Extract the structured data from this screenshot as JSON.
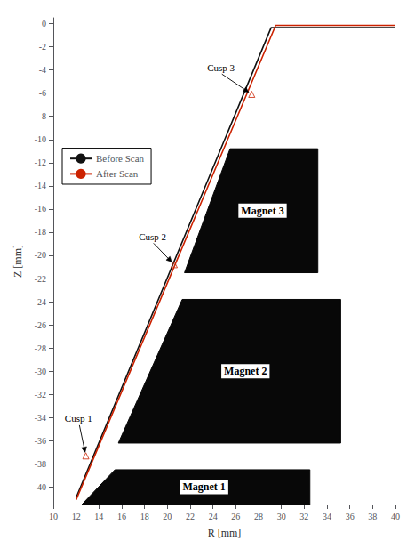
{
  "chart_data": {
    "type": "line",
    "xlabel": "R [mm]",
    "ylabel": "Z [mm]",
    "xlim": [
      10,
      40
    ],
    "ylim": [
      -41.5,
      0.5
    ],
    "xticks": [
      10,
      12,
      14,
      16,
      18,
      20,
      22,
      24,
      26,
      28,
      30,
      32,
      34,
      36,
      38,
      40
    ],
    "yticks": [
      0,
      -2,
      -4,
      -6,
      -8,
      -10,
      -12,
      -14,
      -16,
      -18,
      -20,
      -22,
      -24,
      -26,
      -28,
      -30,
      -32,
      -34,
      -36,
      -38,
      -40
    ],
    "grid": false,
    "legend": "left",
    "series": [
      {
        "name": "Before Scan",
        "color": "#111111",
        "x": [
          12.0,
          29.1,
          40.0
        ],
        "values": [
          -40.9,
          -0.35,
          -0.35
        ]
      },
      {
        "name": "After Scan",
        "color": "#cc2200",
        "x": [
          12.0,
          29.5,
          40.0
        ],
        "values": [
          -41.1,
          -0.15,
          -0.15
        ]
      }
    ],
    "annotations": [
      {
        "text": "Cusp 1",
        "x": 12.85,
        "y": -37.3,
        "text_at": [
          11.0,
          -34.5
        ],
        "marker": "triangle",
        "color": "#cc2200"
      },
      {
        "text": "Cusp 2",
        "x": 20.6,
        "y": -20.8,
        "text_at": [
          17.5,
          -18.8
        ],
        "marker": "triangle",
        "color": "#cc2200"
      },
      {
        "text": "Cusp 3",
        "x": 27.4,
        "y": -6.1,
        "text_at": [
          23.5,
          -4.2
        ],
        "marker": "triangle",
        "color": "#cc2200"
      }
    ],
    "shapes": [
      {
        "label": "Magnet 1",
        "color": "#080808",
        "vertices": [
          [
            12.5,
            -41.5
          ],
          [
            32.5,
            -41.5
          ],
          [
            32.5,
            -38.5
          ],
          [
            15.4,
            -38.5
          ]
        ]
      },
      {
        "label": "Magnet 2",
        "color": "#080808",
        "vertices": [
          [
            15.7,
            -36.2
          ],
          [
            35.2,
            -36.2
          ],
          [
            35.2,
            -23.8
          ],
          [
            21.3,
            -23.8
          ]
        ]
      },
      {
        "label": "Magnet 3",
        "color": "#080808",
        "vertices": [
          [
            21.5,
            -21.5
          ],
          [
            33.2,
            -21.5
          ],
          [
            33.2,
            -10.8
          ],
          [
            25.5,
            -10.8
          ]
        ]
      }
    ]
  }
}
